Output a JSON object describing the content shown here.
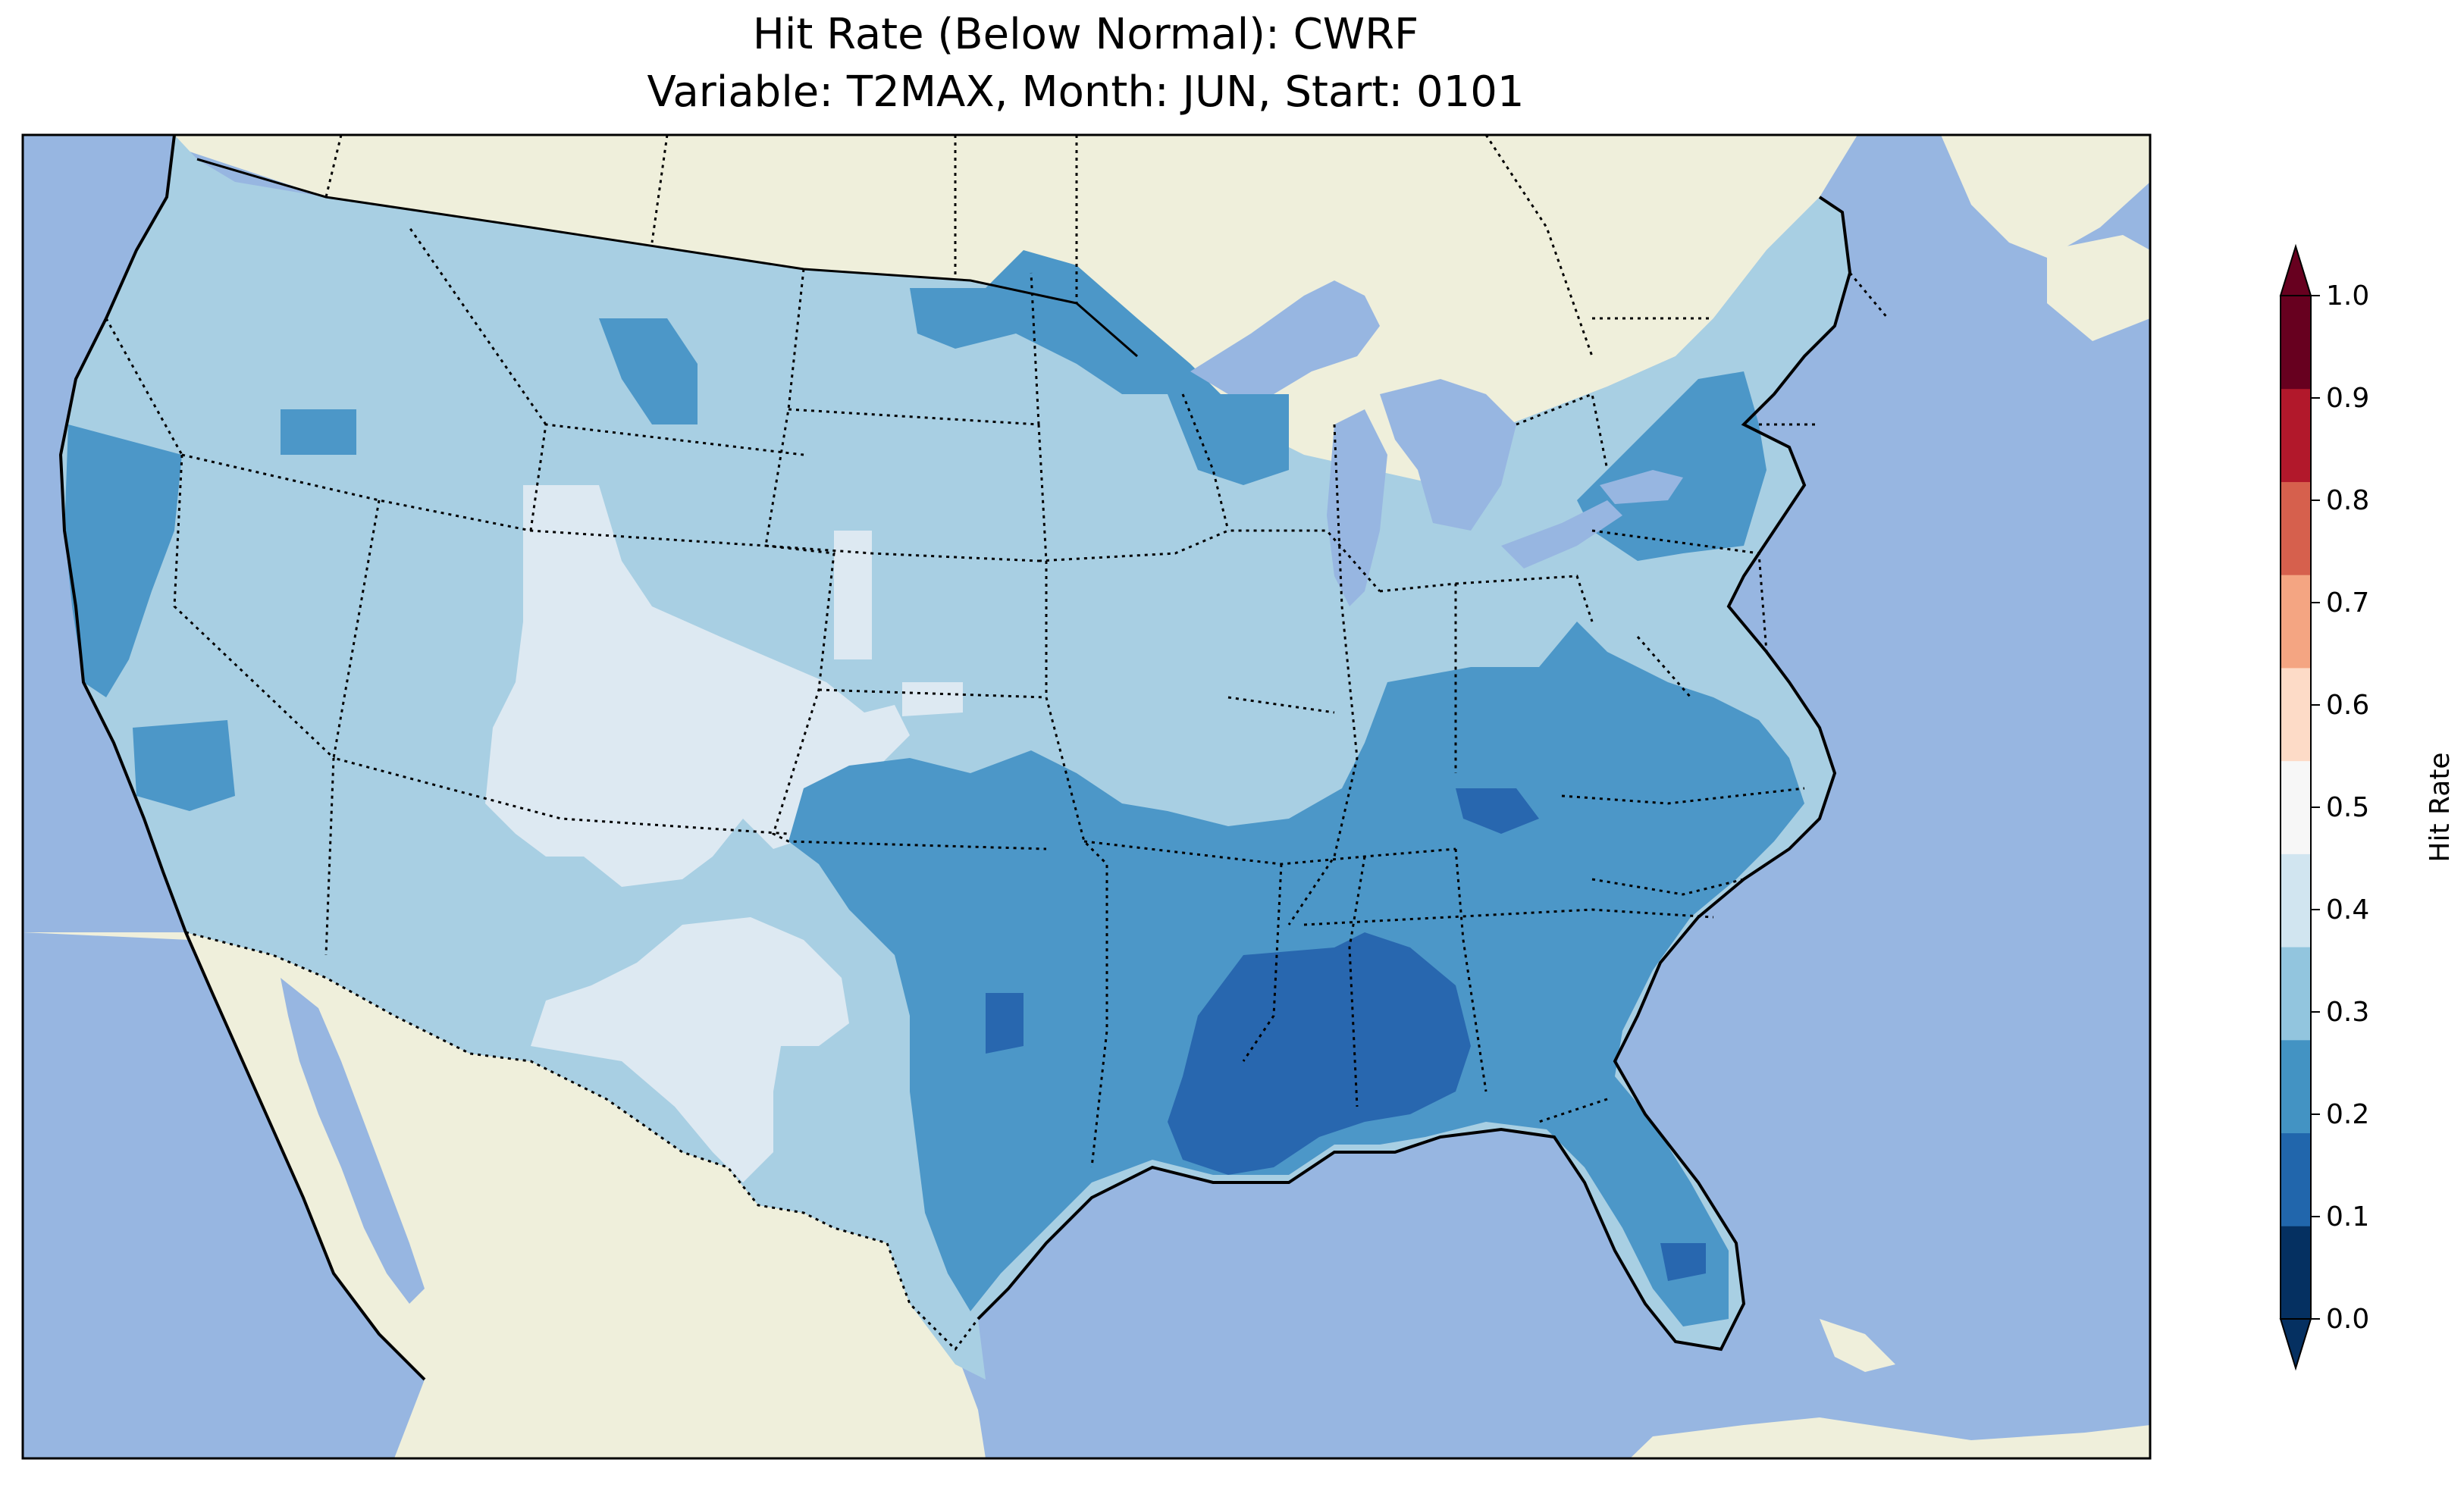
{
  "title": {
    "line1": "Hit Rate (Below Normal): CWRF",
    "line2": "Variable: T2MAX, Month: JUN, Start: 0101"
  },
  "map": {
    "ocean_color": "#97b6e1",
    "land_color": "#efefdb",
    "boundary_color": "#000000"
  },
  "colorbar": {
    "label": "Hit Rate",
    "ticks": [
      "0.0",
      "0.1",
      "0.2",
      "0.3",
      "0.4",
      "0.5",
      "0.6",
      "0.7",
      "0.8",
      "0.9",
      "1.0"
    ],
    "colors": [
      "#053061",
      "#2166ac",
      "#4393c3",
      "#92c5de",
      "#d1e5f0",
      "#f7f7f7",
      "#fddbc7",
      "#f4a582",
      "#d6604d",
      "#b2182b",
      "#67001f"
    ],
    "extend": "both"
  }
}
